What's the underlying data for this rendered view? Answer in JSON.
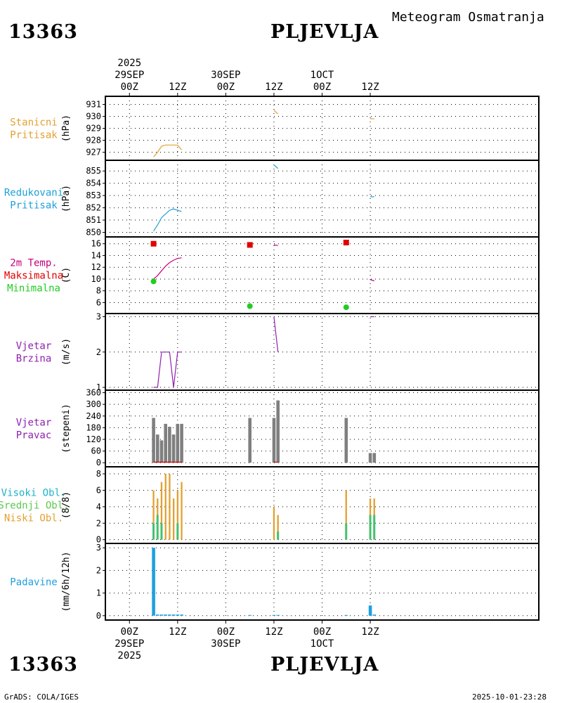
{
  "header": {
    "station_id": "13363",
    "station_name": "PLJEVLJA",
    "chart_title": "Meteogram Osmatranja"
  },
  "footer": {
    "station_id": "13363",
    "station_name": "PLJEVLJA",
    "credit": "GrADS: COLA/IGES",
    "timestamp": "2025-10-01-23:28"
  },
  "colors": {
    "pressure": "#E3A030",
    "reduced": "#1EA0D8",
    "temp": "#C8007A",
    "max": "#E00000",
    "min": "#22CC22",
    "wind": "#9020B0",
    "dir": "#7F7F7F",
    "high_cloud": "#1EB4C8",
    "mid_cloud": "#5CC84C",
    "low_cloud": "#E3A030",
    "precip": "#1EA0E0"
  },
  "chart_data": {
    "type": "meteogram",
    "time_axis": {
      "range_hours": [
        -6,
        102
      ],
      "ticks": [
        {
          "t": 0,
          "label": "00Z",
          "date": "29SEP",
          "year": "2025"
        },
        {
          "t": 12,
          "label": "12Z",
          "date": "",
          "year": ""
        },
        {
          "t": 24,
          "label": "00Z",
          "date": "30SEP",
          "year": ""
        },
        {
          "t": 36,
          "label": "12Z",
          "date": "",
          "year": ""
        },
        {
          "t": 48,
          "label": "00Z",
          "date": "1OCT",
          "year": ""
        },
        {
          "t": 60,
          "label": "12Z",
          "date": "",
          "year": ""
        }
      ]
    },
    "panels": [
      {
        "id": "station-pressure",
        "title": [
          "Stanicni",
          "Pritisak"
        ],
        "title_colors": [
          "pressure",
          "pressure"
        ],
        "unit": "(hPa)",
        "ylim": [
          926.5,
          931.5
        ],
        "yticks": [
          927,
          928,
          929,
          930,
          931
        ],
        "series": [
          {
            "kind": "line",
            "color": "pressure",
            "segments": [
              [
                [
                  6,
                  926.6
                ],
                [
                  7,
                  927.0
                ],
                [
                  8,
                  927.5
                ],
                [
                  9,
                  927.6
                ],
                [
                  10,
                  927.6
                ],
                [
                  11,
                  927.6
                ],
                [
                  12,
                  927.6
                ],
                [
                  13,
                  927.2
                ]
              ],
              [
                [
                  36,
                  930.5
                ],
                [
                  37,
                  930.2
                ]
              ],
              [
                [
                  60,
                  929.8
                ],
                [
                  61,
                  929.8
                ]
              ]
            ]
          }
        ]
      },
      {
        "id": "reduced-pressure",
        "title": [
          "Redukovani",
          "Pritisak"
        ],
        "title_colors": [
          "reduced",
          "reduced"
        ],
        "unit": "(hPa)",
        "ylim": [
          849.8,
          855.7
        ],
        "yticks": [
          850,
          851,
          852,
          853,
          854,
          855
        ],
        "series": [
          {
            "kind": "line",
            "color": "reduced",
            "segments": [
              [
                [
                  6,
                  850.1
                ],
                [
                  7,
                  850.6
                ],
                [
                  8,
                  851.2
                ],
                [
                  9,
                  851.5
                ],
                [
                  10,
                  851.8
                ],
                [
                  11,
                  851.9
                ],
                [
                  12,
                  851.8
                ],
                [
                  13,
                  851.7
                ]
              ],
              [
                [
                  36,
                  855.5
                ],
                [
                  37,
                  855.2
                ]
              ],
              [
                [
                  60,
                  852.9
                ],
                [
                  61,
                  852.9
                ]
              ]
            ]
          }
        ]
      },
      {
        "id": "temperature",
        "title": [
          "2m Temp.",
          "Maksimalna",
          "Minimalna"
        ],
        "title_colors": [
          "temp",
          "max",
          "min"
        ],
        "unit": "(C)",
        "ylim": [
          4.5,
          16.8
        ],
        "yticks": [
          6,
          8,
          10,
          12,
          14,
          16
        ],
        "series": [
          {
            "kind": "line",
            "color": "temp",
            "segments": [
              [
                [
                  6,
                  10.0
                ],
                [
                  7,
                  10.6
                ],
                [
                  8,
                  11.4
                ],
                [
                  9,
                  12.2
                ],
                [
                  10,
                  12.8
                ],
                [
                  11,
                  13.2
                ],
                [
                  12,
                  13.5
                ],
                [
                  13,
                  13.6
                ]
              ],
              [
                [
                  36,
                  15.8
                ],
                [
                  37,
                  15.7
                ]
              ],
              [
                [
                  60,
                  9.9
                ],
                [
                  61,
                  9.7
                ]
              ]
            ]
          },
          {
            "kind": "square",
            "color": "max",
            "points": [
              [
                6,
                16.0
              ],
              [
                30,
                15.8
              ],
              [
                54,
                16.2
              ]
            ]
          },
          {
            "kind": "dot",
            "color": "min",
            "points": [
              [
                6,
                9.6
              ],
              [
                30,
                5.4
              ],
              [
                54,
                5.2
              ]
            ]
          }
        ]
      },
      {
        "id": "wind-speed",
        "title": [
          "Vjetar",
          "Brzina"
        ],
        "title_colors": [
          "wind",
          "wind"
        ],
        "unit": "(m/s)",
        "ylim": [
          0.98,
          3.03
        ],
        "yticks": [
          1,
          2,
          3
        ],
        "series": [
          {
            "kind": "line",
            "color": "wind",
            "segments": [
              [
                [
                  6,
                  1.0
                ],
                [
                  7,
                  1.0
                ],
                [
                  8,
                  2.0
                ],
                [
                  9,
                  2.0
                ],
                [
                  10,
                  2.0
                ],
                [
                  11,
                  1.0
                ],
                [
                  12,
                  2.0
                ],
                [
                  13,
                  2.0
                ]
              ],
              [
                [
                  36,
                  3.0
                ],
                [
                  37,
                  2.0
                ]
              ],
              [
                [
                  60,
                  3.0
                ],
                [
                  61,
                  3.0
                ]
              ]
            ]
          }
        ]
      },
      {
        "id": "wind-direction",
        "title": [
          "Vjetar",
          "Pravac"
        ],
        "title_colors": [
          "wind",
          "wind"
        ],
        "unit": "(stepeni)",
        "ylim": [
          -10,
          362
        ],
        "yticks": [
          0,
          60,
          120,
          180,
          240,
          300,
          360
        ],
        "ytick_labels": [
          "0",
          "60",
          "120",
          "180",
          "240",
          "300",
          "360"
        ],
        "series": [
          {
            "kind": "bars",
            "color": "dir",
            "width_h": 0.8,
            "points": [
              [
                6,
                230
              ],
              [
                7,
                145
              ],
              [
                8,
                115
              ],
              [
                9,
                200
              ],
              [
                10,
                185
              ],
              [
                11,
                145
              ],
              [
                12,
                200
              ],
              [
                13,
                200
              ],
              [
                30,
                230
              ],
              [
                36,
                230
              ],
              [
                37,
                320
              ],
              [
                54,
                230
              ],
              [
                60,
                50
              ],
              [
                61,
                50
              ]
            ]
          },
          {
            "kind": "line",
            "color": "max",
            "segments": [
              [
                [
                  6,
                  3
                ],
                [
                  13,
                  3
                ]
              ],
              [
                [
                  36,
                  3
                ],
                [
                  37,
                  3
                ]
              ]
            ]
          }
        ]
      },
      {
        "id": "clouds",
        "title": [
          "Visoki Obl.",
          "Srednji Obl.",
          "Niski Obl."
        ],
        "title_colors": [
          "high_cloud",
          "mid_cloud",
          "low_cloud"
        ],
        "unit": "(8/8)",
        "ylim": [
          -0.2,
          8.6
        ],
        "yticks": [
          0,
          2,
          4,
          6,
          8
        ],
        "series": [
          {
            "kind": "bars",
            "color": "low_cloud",
            "width_h": 0.4,
            "points": [
              [
                6,
                6
              ],
              [
                7,
                5
              ],
              [
                8,
                7
              ],
              [
                9,
                8
              ],
              [
                10,
                8
              ],
              [
                11,
                5
              ],
              [
                12,
                6
              ],
              [
                13,
                7
              ],
              [
                36,
                4
              ],
              [
                37,
                3
              ],
              [
                54,
                6
              ],
              [
                60,
                5
              ],
              [
                61,
                5
              ]
            ]
          },
          {
            "kind": "bars",
            "color": "mid_cloud",
            "width_h": 0.55,
            "points": [
              [
                6,
                2
              ],
              [
                7,
                3
              ],
              [
                8,
                2
              ],
              [
                12,
                2
              ],
              [
                37,
                1
              ],
              [
                54,
                2
              ],
              [
                60,
                3
              ],
              [
                61,
                3
              ]
            ]
          },
          {
            "kind": "bars",
            "color": "high_cloud",
            "width_h": 0.15,
            "points": [
              [
                6,
                2
              ],
              [
                7,
                3
              ],
              [
                8,
                2
              ],
              [
                12,
                2
              ],
              [
                37,
                1
              ],
              [
                54,
                2
              ],
              [
                60,
                3
              ],
              [
                61,
                3
              ]
            ]
          }
        ]
      },
      {
        "id": "precipitation",
        "title": [
          "Padavine"
        ],
        "title_colors": [
          "precip"
        ],
        "unit": "(mm/6h/12h)",
        "ylim": [
          -0.1,
          3.1
        ],
        "yticks": [
          0,
          1,
          2,
          3
        ],
        "series": [
          {
            "kind": "bars",
            "color": "precip",
            "width_h": 0.8,
            "points": [
              [
                6,
                3.0
              ],
              [
                7,
                0.05
              ],
              [
                8,
                0.05
              ],
              [
                9,
                0.05
              ],
              [
                10,
                0.05
              ],
              [
                11,
                0.05
              ],
              [
                12,
                0.05
              ],
              [
                13,
                0.05
              ],
              [
                30,
                0.03
              ],
              [
                36,
                0.03
              ],
              [
                37,
                0.03
              ],
              [
                54,
                0.03
              ],
              [
                60,
                0.45
              ],
              [
                61,
                0.05
              ]
            ]
          }
        ]
      }
    ]
  }
}
